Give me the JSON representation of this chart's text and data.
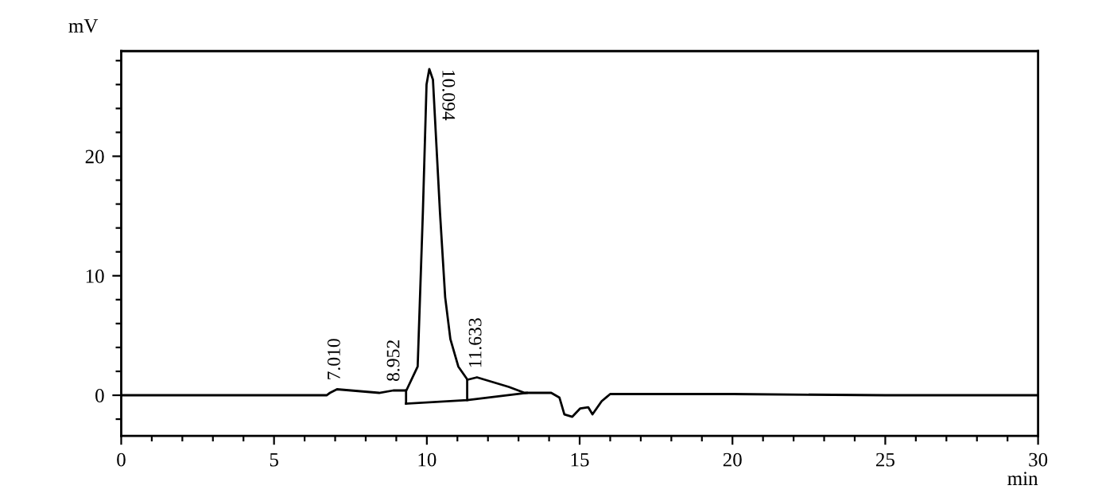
{
  "chart_data": {
    "type": "line",
    "xlabel": "min",
    "ylabel": "mV",
    "x": [
      0,
      3,
      6.72,
      6.83,
      7.06,
      7.52,
      8.44,
      8.9,
      9.18,
      9.33,
      9.7,
      9.87,
      9.99,
      10.08,
      10.2,
      10.43,
      10.6,
      10.77,
      11.03,
      11.33,
      11.64,
      12.16,
      12.68,
      13.2,
      14.07,
      14.34,
      14.5,
      14.76,
      15.02,
      15.28,
      15.42,
      15.72,
      16.0,
      20,
      25,
      30
    ],
    "series": [
      {
        "color": "#000000",
        "values": [
          0,
          0,
          0,
          0.2,
          0.5,
          0.4,
          0.2,
          0.4,
          0.4,
          0.4,
          2.4,
          15.3,
          26,
          27.3,
          26.4,
          15.3,
          8.2,
          4.7,
          2.4,
          1.3,
          1.5,
          1.1,
          0.7,
          0.2,
          0.2,
          -0.2,
          -1.6,
          -1.8,
          -1.1,
          -1.0,
          -1.6,
          -0.5,
          0.1,
          0.1,
          0,
          0
        ]
      },
      {
        "color": "#000000",
        "x": [
          9.32,
          9.32
        ],
        "values": [
          0.4,
          -0.7
        ]
      },
      {
        "color": "#000000",
        "x": [
          9.32,
          11.32,
          13.27
        ],
        "values": [
          -0.7,
          -0.4,
          0.2
        ]
      },
      {
        "color": "#000000",
        "x": [
          11.32,
          11.32
        ],
        "values": [
          -0.4,
          1.3
        ]
      }
    ],
    "annotations": [
      {
        "text": "7.010",
        "x": 7.01,
        "y": 0.5
      },
      {
        "text": "8.952",
        "x": 8.952,
        "y": 0.4
      },
      {
        "text": "10.094",
        "x": 10.094,
        "y": 27.3
      },
      {
        "text": "11.633",
        "x": 11.633,
        "y": 1.5
      }
    ],
    "xlim": [
      0,
      30
    ],
    "ylim": [
      -3.4,
      28.8
    ],
    "xticks": [
      0,
      {
        "value": 1,
        "label": null
      },
      {
        "value": 2,
        "label": null
      },
      {
        "value": 3,
        "label": null
      },
      {
        "value": 4,
        "label": null
      },
      5,
      {
        "value": 6,
        "label": null
      },
      {
        "value": 7,
        "label": null
      },
      {
        "value": 8,
        "label": null
      },
      {
        "value": 9,
        "label": null
      },
      10,
      {
        "value": 11,
        "label": null
      },
      {
        "value": 12,
        "label": null
      },
      {
        "value": 13,
        "label": null
      },
      {
        "value": 14,
        "label": null
      },
      15,
      {
        "value": 16,
        "label": null
      },
      {
        "value": 17,
        "label": null
      },
      {
        "value": 18,
        "label": null
      },
      {
        "value": 19,
        "label": null
      },
      20,
      {
        "value": 21,
        "label": null
      },
      {
        "value": 22,
        "label": null
      },
      {
        "value": 23,
        "label": null
      },
      {
        "value": 24,
        "label": null
      },
      25,
      {
        "value": 26,
        "label": null
      },
      {
        "value": 27,
        "label": null
      },
      {
        "value": 28,
        "label": null
      },
      {
        "value": 29,
        "label": null
      },
      30
    ],
    "yticks": [
      {
        "value": -2,
        "label": null
      },
      0,
      {
        "value": 2,
        "label": null
      },
      {
        "value": 4,
        "label": null
      },
      {
        "value": 6,
        "label": null
      },
      {
        "value": 8,
        "label": null
      },
      10,
      {
        "value": 12,
        "label": null
      },
      {
        "value": 14,
        "label": null
      },
      {
        "value": 16,
        "label": null
      },
      {
        "value": 18,
        "label": null
      },
      20,
      {
        "value": 22,
        "label": null
      },
      {
        "value": 24,
        "label": null
      },
      {
        "value": 26,
        "label": null
      },
      {
        "value": 28,
        "label": null
      }
    ],
    "grid": false,
    "legend": false,
    "marker": "none",
    "line_style": "solid"
  }
}
